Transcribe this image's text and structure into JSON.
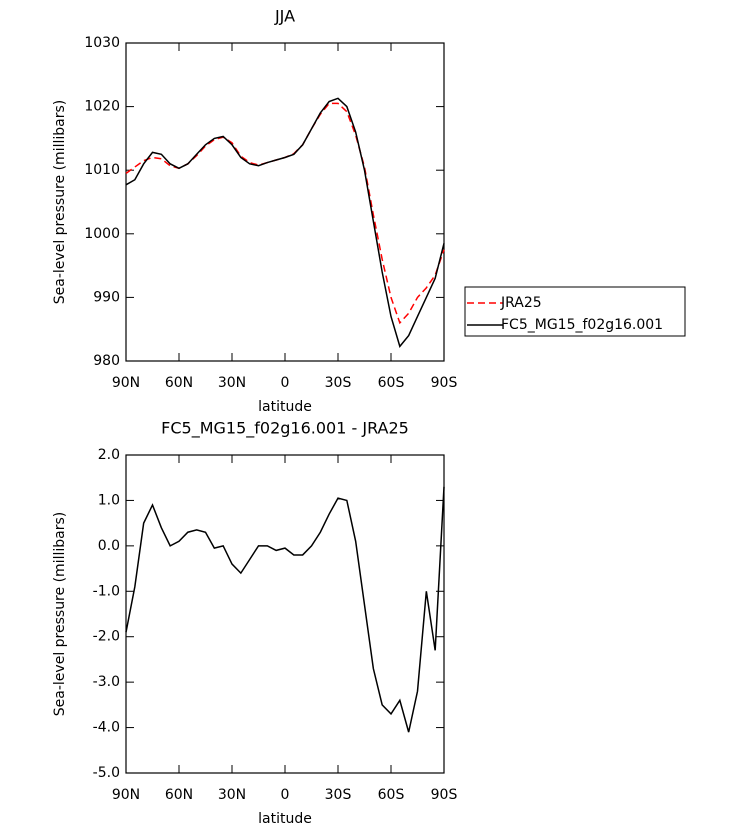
{
  "chart_data": [
    {
      "type": "line",
      "title": "JJA",
      "xlabel": "latitude",
      "ylabel": "Sea-level pressure (millibars)",
      "x": [
        90,
        85,
        80,
        75,
        70,
        65,
        60,
        55,
        50,
        45,
        40,
        35,
        30,
        25,
        20,
        15,
        10,
        5,
        0,
        -5,
        -10,
        -15,
        -20,
        -25,
        -30,
        -35,
        -40,
        -45,
        -50,
        -55,
        -60,
        -65,
        -70,
        -75,
        -80,
        -85,
        -90
      ],
      "xlim": [
        90,
        -90
      ],
      "xticks": [
        {
          "value": 90,
          "label": "90N"
        },
        {
          "value": 60,
          "label": "60N"
        },
        {
          "value": 30,
          "label": "30N"
        },
        0,
        {
          "value": -30,
          "label": "30S"
        },
        {
          "value": -60,
          "label": "60S"
        },
        {
          "value": -90,
          "label": "90S"
        }
      ],
      "ylim": [
        980,
        1030
      ],
      "yticks": [
        980,
        990,
        1000,
        1010,
        1020,
        1030
      ],
      "legend": "right",
      "series": [
        {
          "name": "JRA25",
          "color": "#ff0000",
          "style": "dashed",
          "values": [
            1009.5,
            1010.5,
            1011.5,
            1012,
            1011.8,
            1010.7,
            1010.3,
            1011,
            1012.3,
            1013.8,
            1014.8,
            1015.2,
            1014.3,
            1012.2,
            1011.2,
            1010.8,
            1011.2,
            1011.6,
            1012,
            1012.6,
            1014,
            1016.5,
            1018.8,
            1020.5,
            1020.5,
            1019.2,
            1015.5,
            1010.5,
            1003,
            996,
            990,
            986,
            987.5,
            990,
            991.5,
            993.5,
            997.5
          ]
        },
        {
          "name": "FC5_MG15_f02g16.001",
          "color": "#000000",
          "style": "solid",
          "values": [
            1007.7,
            1008.5,
            1011,
            1012.8,
            1012.5,
            1011,
            1010.3,
            1011,
            1012.5,
            1014,
            1015,
            1015.3,
            1014,
            1012,
            1011,
            1010.7,
            1011.2,
            1011.6,
            1012,
            1012.5,
            1014,
            1016.5,
            1019,
            1020.8,
            1021.3,
            1020,
            1016,
            1010,
            1002,
            994,
            987,
            982.3,
            984,
            987,
            990,
            993,
            998.5
          ]
        }
      ]
    },
    {
      "type": "line",
      "title": "FC5_MG15_f02g16.001 - JRA25",
      "xlabel": "latitude",
      "ylabel": "Sea-level pressure (millibars)",
      "x": [
        90,
        85,
        80,
        75,
        70,
        65,
        60,
        55,
        50,
        45,
        40,
        35,
        30,
        25,
        20,
        15,
        10,
        5,
        0,
        -5,
        -10,
        -15,
        -20,
        -25,
        -30,
        -35,
        -40,
        -45,
        -50,
        -55,
        -60,
        -65,
        -70,
        -75,
        -80,
        -85,
        -90
      ],
      "xlim": [
        90,
        -90
      ],
      "xticks": [
        {
          "value": 90,
          "label": "90N"
        },
        {
          "value": 60,
          "label": "60N"
        },
        {
          "value": 30,
          "label": "30N"
        },
        0,
        {
          "value": -30,
          "label": "30S"
        },
        {
          "value": -60,
          "label": "60S"
        },
        {
          "value": -90,
          "label": "90S"
        }
      ],
      "ylim": [
        -5,
        2
      ],
      "yticks": [
        {
          "value": -5,
          "label": "-5.0"
        },
        {
          "value": -4,
          "label": "-4.0"
        },
        {
          "value": -3,
          "label": "-3.0"
        },
        {
          "value": -2,
          "label": "-2.0"
        },
        {
          "value": -1,
          "label": "-1.0"
        },
        {
          "value": 0,
          "label": "0.0"
        },
        {
          "value": 1,
          "label": "1.0"
        },
        {
          "value": 2,
          "label": "2.0"
        }
      ],
      "series": [
        {
          "color": "#000000",
          "style": "solid",
          "values": [
            -1.9,
            -0.9,
            0.5,
            0.9,
            0.4,
            0.0,
            0.1,
            0.3,
            0.35,
            0.3,
            -0.05,
            0.0,
            -0.4,
            -0.6,
            -0.3,
            0.0,
            0.0,
            -0.1,
            -0.05,
            -0.2,
            -0.2,
            0.0,
            0.3,
            0.7,
            1.05,
            1.0,
            0.1,
            -1.3,
            -2.7,
            -3.5,
            -3.7,
            -3.4,
            -4.1,
            -3.2,
            -1.0,
            -2.3,
            1.3
          ]
        }
      ]
    }
  ]
}
